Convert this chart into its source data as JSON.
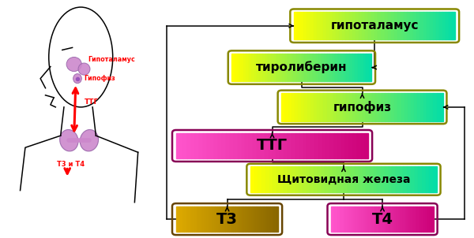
{
  "bg_color": "#ffffff",
  "left_labels": {
    "gipotalamus": "Гипоталамус",
    "gipofiz": "Гипофиз",
    "TTG": "ТТГ",
    "T3T4": "Т3 и Т4"
  },
  "boxes": {
    "gipotalamus": {
      "label": "гипоталамус",
      "c1": "#ffff00",
      "c2": "#00ddaa",
      "ec": "#888800",
      "fs": 11
    },
    "tirolib": {
      "label": "тиролиберин",
      "c1": "#ffff00",
      "c2": "#00ddaa",
      "ec": "#888800",
      "fs": 11
    },
    "gipofiz": {
      "label": "гипофиз",
      "c1": "#ffff00",
      "c2": "#00ddaa",
      "ec": "#888800",
      "fs": 11
    },
    "TTG": {
      "label": "ТТГ",
      "c1": "#ff55cc",
      "c2": "#cc0077",
      "ec": "#880055",
      "fs": 14
    },
    "thyroid": {
      "label": "Щитовидная железа",
      "c1": "#ffff00",
      "c2": "#00ddaa",
      "ec": "#888800",
      "fs": 10
    },
    "T3": {
      "label": "Т3",
      "c1": "#ddaa00",
      "c2": "#886600",
      "ec": "#664400",
      "fs": 14
    },
    "T4": {
      "label": "Т4",
      "c1": "#ff55cc",
      "c2": "#cc0077",
      "ec": "#880055",
      "fs": 14
    }
  }
}
